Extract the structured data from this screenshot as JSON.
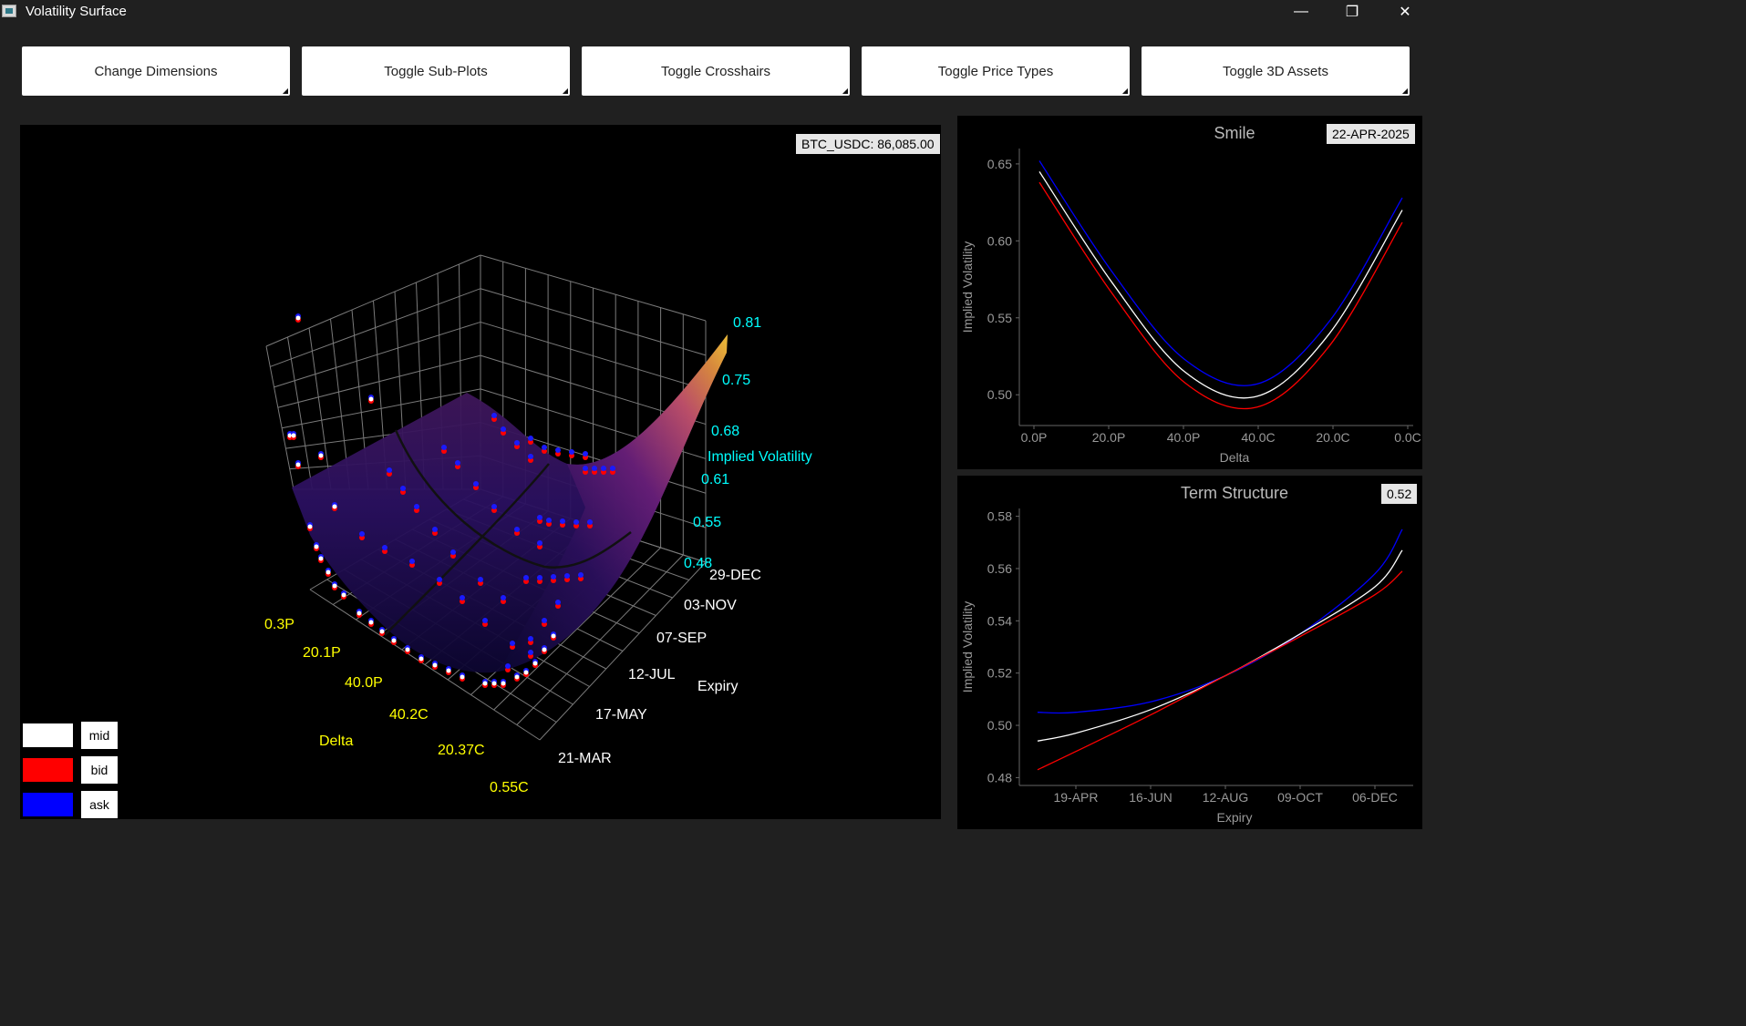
{
  "window": {
    "title": "Volatility Surface",
    "minimize": "—",
    "restore": "❐",
    "close": "✕"
  },
  "toolbar": [
    {
      "label": "Change Dimensions"
    },
    {
      "label": "Toggle Sub-Plots"
    },
    {
      "label": "Toggle Crosshairs"
    },
    {
      "label": "Toggle Price Types"
    },
    {
      "label": "Toggle 3D Assets"
    }
  ],
  "surface": {
    "ticker_badge": "BTC_USDC:  86,085.00",
    "z_axis_label": "Implied Volatility",
    "z_ticks": [
      "0.81",
      "0.75",
      "0.68",
      "0.61",
      "0.55",
      "0.48"
    ],
    "expiry_axis_label": "Expiry",
    "expiry_ticks": [
      "29-DEC",
      "03-NOV",
      "07-SEP",
      "12-JUL",
      "17-MAY",
      "21-MAR"
    ],
    "delta_axis_label": "Delta",
    "delta_ticks": [
      "0.3P",
      "20.1P",
      "40.0P",
      "40.2C",
      "20.37C",
      "0.55C"
    ],
    "colors": {
      "axis_ticks_z": "#00ffff",
      "axis_ticks_delta": "#ffff00",
      "axis_ticks_expiry": "#ffffff"
    }
  },
  "legend": [
    {
      "label": "mid",
      "color": "#ffffff"
    },
    {
      "label": "bid",
      "color": "#ff0000"
    },
    {
      "label": "ask",
      "color": "#0000ff"
    }
  ],
  "chart_data": [
    {
      "type": "line",
      "title": "Smile",
      "badge": "22-APR-2025",
      "xlabel": "Delta",
      "ylabel": "Implied Volatility",
      "x_tick_labels": [
        "0.0P",
        "20.0P",
        "40.0P",
        "40.0C",
        "20.0C",
        "0.0C"
      ],
      "y_ticks": [
        "0.65",
        "0.60",
        "0.55",
        "0.50"
      ],
      "ylim": [
        0.48,
        0.66
      ],
      "x": [
        0,
        20,
        40,
        60,
        80,
        100
      ],
      "series": [
        {
          "name": "ask",
          "color": "#0000ff",
          "values": [
            0.652,
            0.58,
            0.523,
            0.507,
            0.548,
            0.628
          ]
        },
        {
          "name": "mid",
          "color": "#ffffff",
          "values": [
            0.645,
            0.573,
            0.515,
            0.499,
            0.54,
            0.62
          ]
        },
        {
          "name": "bid",
          "color": "#ff0000",
          "values": [
            0.638,
            0.566,
            0.508,
            0.492,
            0.532,
            0.612
          ]
        }
      ]
    },
    {
      "type": "line",
      "title": "Term Structure",
      "badge": "0.52",
      "xlabel": "Expiry",
      "ylabel": "Implied Volatility",
      "x_tick_labels": [
        "19-APR",
        "16-JUN",
        "12-AUG",
        "09-OCT",
        "06-DEC"
      ],
      "y_ticks": [
        "0.58",
        "0.56",
        "0.54",
        "0.52",
        "0.50",
        "0.48"
      ],
      "ylim": [
        0.477,
        0.583
      ],
      "x": [
        "02-APR",
        "19-APR",
        "16-JUN",
        "12-AUG",
        "09-OCT",
        "06-DEC",
        "25-DEC"
      ],
      "series": [
        {
          "name": "ask",
          "color": "#0000ff",
          "values": [
            0.505,
            0.505,
            0.509,
            0.519,
            0.535,
            0.558,
            0.575
          ]
        },
        {
          "name": "mid",
          "color": "#ffffff",
          "values": [
            0.494,
            0.497,
            0.506,
            0.519,
            0.535,
            0.553,
            0.567
          ]
        },
        {
          "name": "bid",
          "color": "#ff0000",
          "values": [
            0.483,
            0.49,
            0.504,
            0.519,
            0.534,
            0.55,
            0.559
          ]
        }
      ]
    }
  ]
}
